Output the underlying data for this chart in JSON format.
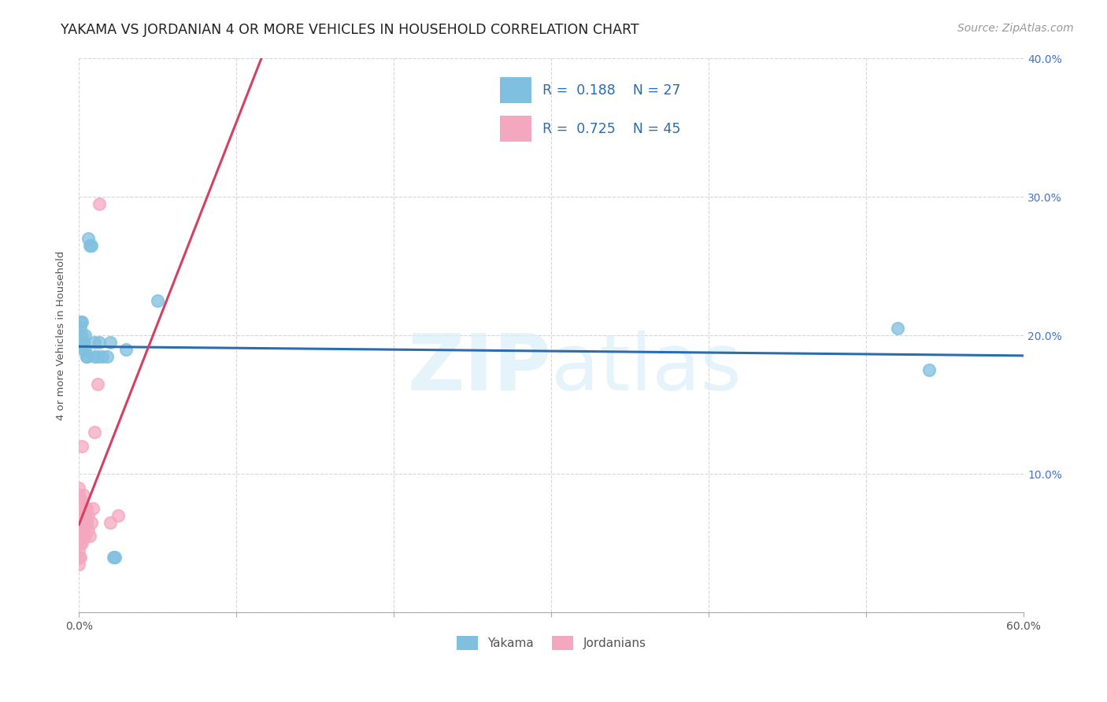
{
  "title": "YAKAMA VS JORDANIAN 4 OR MORE VEHICLES IN HOUSEHOLD CORRELATION CHART",
  "source": "Source: ZipAtlas.com",
  "ylabel": "4 or more Vehicles in Household",
  "xlim": [
    0.0,
    0.6
  ],
  "ylim": [
    0.0,
    0.4
  ],
  "xticks": [
    0.0,
    0.1,
    0.2,
    0.3,
    0.4,
    0.5,
    0.6
  ],
  "yticks": [
    0.0,
    0.1,
    0.2,
    0.3,
    0.4
  ],
  "xtick_labels": [
    "0.0%",
    "",
    "",
    "",
    "",
    "",
    "60.0%"
  ],
  "ytick_labels_right": [
    "",
    "10.0%",
    "20.0%",
    "30.0%",
    "40.0%"
  ],
  "watermark": "ZIPatlas",
  "yakama_color": "#7fbfdf",
  "jordanian_color": "#f4a8bf",
  "trendline_yakama_color": "#2b6cb0",
  "trendline_jordanian_color": "#d44060",
  "yakama_scatter": [
    [
      0.001,
      0.205
    ],
    [
      0.001,
      0.21
    ],
    [
      0.002,
      0.195
    ],
    [
      0.002,
      0.2
    ],
    [
      0.002,
      0.21
    ],
    [
      0.003,
      0.19
    ],
    [
      0.003,
      0.195
    ],
    [
      0.003,
      0.195
    ],
    [
      0.004,
      0.19
    ],
    [
      0.004,
      0.2
    ],
    [
      0.005,
      0.185
    ],
    [
      0.005,
      0.185
    ],
    [
      0.006,
      0.27
    ],
    [
      0.007,
      0.265
    ],
    [
      0.008,
      0.265
    ],
    [
      0.01,
      0.185
    ],
    [
      0.01,
      0.195
    ],
    [
      0.012,
      0.185
    ],
    [
      0.013,
      0.195
    ],
    [
      0.015,
      0.185
    ],
    [
      0.018,
      0.185
    ],
    [
      0.02,
      0.195
    ],
    [
      0.022,
      0.04
    ],
    [
      0.023,
      0.04
    ],
    [
      0.03,
      0.19
    ],
    [
      0.05,
      0.225
    ],
    [
      0.52,
      0.205
    ],
    [
      0.54,
      0.175
    ]
  ],
  "jordanian_scatter": [
    [
      0.0,
      0.035
    ],
    [
      0.0,
      0.04
    ],
    [
      0.0,
      0.045
    ],
    [
      0.0,
      0.05
    ],
    [
      0.0,
      0.055
    ],
    [
      0.0,
      0.06
    ],
    [
      0.0,
      0.065
    ],
    [
      0.0,
      0.07
    ],
    [
      0.0,
      0.075
    ],
    [
      0.0,
      0.08
    ],
    [
      0.0,
      0.085
    ],
    [
      0.0,
      0.09
    ],
    [
      0.001,
      0.04
    ],
    [
      0.001,
      0.05
    ],
    [
      0.001,
      0.055
    ],
    [
      0.001,
      0.06
    ],
    [
      0.001,
      0.07
    ],
    [
      0.001,
      0.075
    ],
    [
      0.001,
      0.08
    ],
    [
      0.002,
      0.05
    ],
    [
      0.002,
      0.06
    ],
    [
      0.002,
      0.065
    ],
    [
      0.002,
      0.07
    ],
    [
      0.002,
      0.08
    ],
    [
      0.002,
      0.12
    ],
    [
      0.003,
      0.055
    ],
    [
      0.003,
      0.06
    ],
    [
      0.003,
      0.065
    ],
    [
      0.003,
      0.07
    ],
    [
      0.003,
      0.085
    ],
    [
      0.004,
      0.055
    ],
    [
      0.004,
      0.07
    ],
    [
      0.004,
      0.075
    ],
    [
      0.005,
      0.065
    ],
    [
      0.005,
      0.075
    ],
    [
      0.006,
      0.06
    ],
    [
      0.006,
      0.07
    ],
    [
      0.007,
      0.055
    ],
    [
      0.008,
      0.065
    ],
    [
      0.009,
      0.075
    ],
    [
      0.01,
      0.13
    ],
    [
      0.012,
      0.165
    ],
    [
      0.013,
      0.295
    ],
    [
      0.02,
      0.065
    ],
    [
      0.025,
      0.07
    ]
  ],
  "background_color": "#ffffff",
  "grid_color": "#cccccc",
  "title_fontsize": 12.5,
  "axis_label_fontsize": 9.5,
  "tick_fontsize": 10,
  "legend_fontsize": 13,
  "source_fontsize": 10
}
